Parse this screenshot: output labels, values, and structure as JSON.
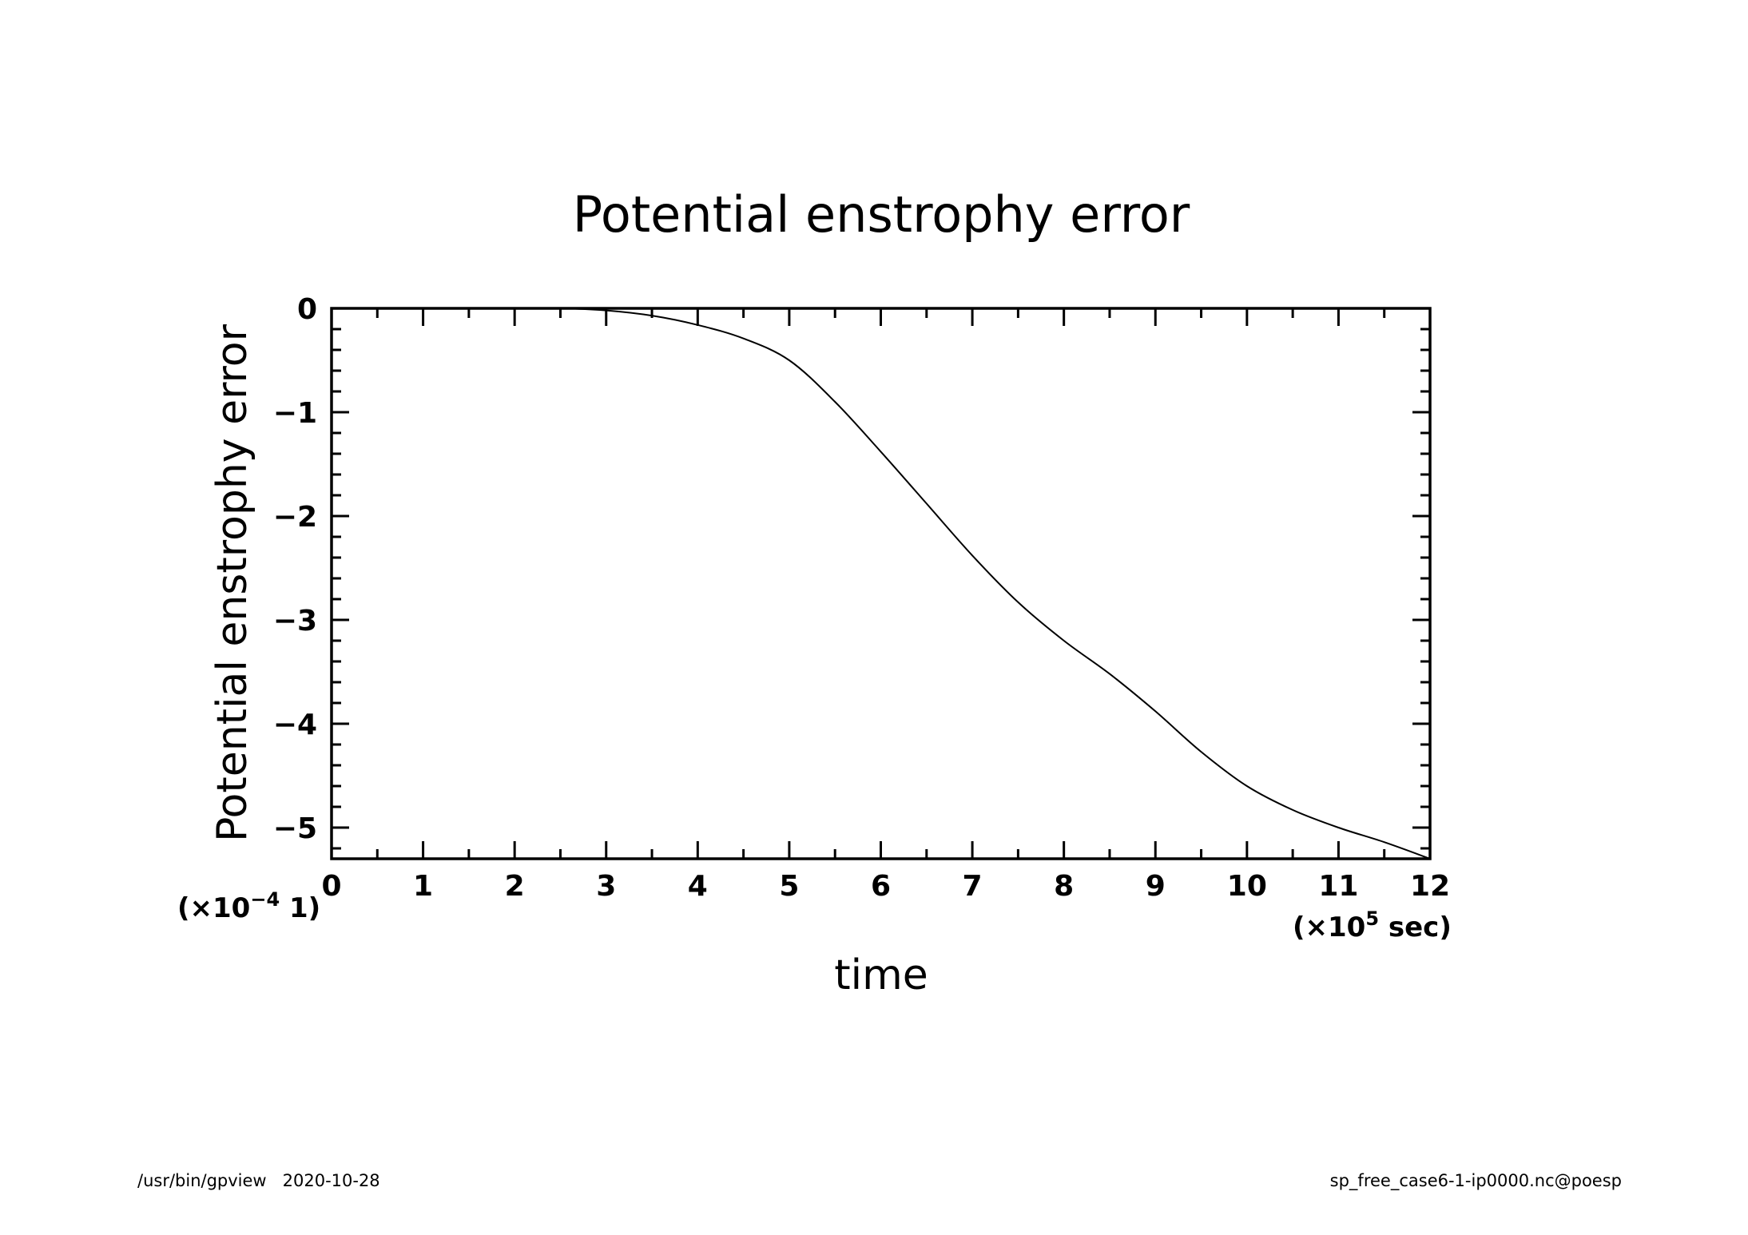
{
  "chart_data": {
    "type": "line",
    "title": "Potential enstrophy error",
    "xlabel": "time",
    "ylabel": "Potential enstrophy error",
    "x_multiplier": {
      "base": "(×10",
      "exp": "5",
      "rest": " sec)"
    },
    "y_multiplier": {
      "base": "(×10",
      "exp": "−4",
      "rest": " 1)"
    },
    "xlim": [
      0,
      12
    ],
    "ylim": [
      -5.3,
      0
    ],
    "x_ticks": [
      "0",
      "1",
      "2",
      "3",
      "4",
      "5",
      "6",
      "7",
      "8",
      "9",
      "10",
      "11",
      "12"
    ],
    "y_ticks": [
      "0",
      "−1",
      "−2",
      "−3",
      "−4",
      "−5"
    ],
    "grid": false,
    "series": [
      {
        "x": [
          0,
          1,
          2,
          2.5,
          3,
          3.5,
          4,
          4.5,
          5,
          5.5,
          6,
          6.5,
          7,
          7.5,
          8,
          8.5,
          9,
          9.5,
          10,
          10.5,
          11,
          11.5,
          12
        ],
        "y": [
          0,
          0,
          0,
          0,
          -0.02,
          -0.07,
          -0.16,
          -0.29,
          -0.5,
          -0.9,
          -1.38,
          -1.88,
          -2.38,
          -2.83,
          -3.2,
          -3.52,
          -3.88,
          -4.27,
          -4.6,
          -4.83,
          -5.0,
          -5.14,
          -5.3
        ]
      }
    ]
  },
  "footer": {
    "left": "/usr/bin/gpview   2020-10-28",
    "right": "sp_free_case6-1-ip0000.nc@poesp"
  }
}
